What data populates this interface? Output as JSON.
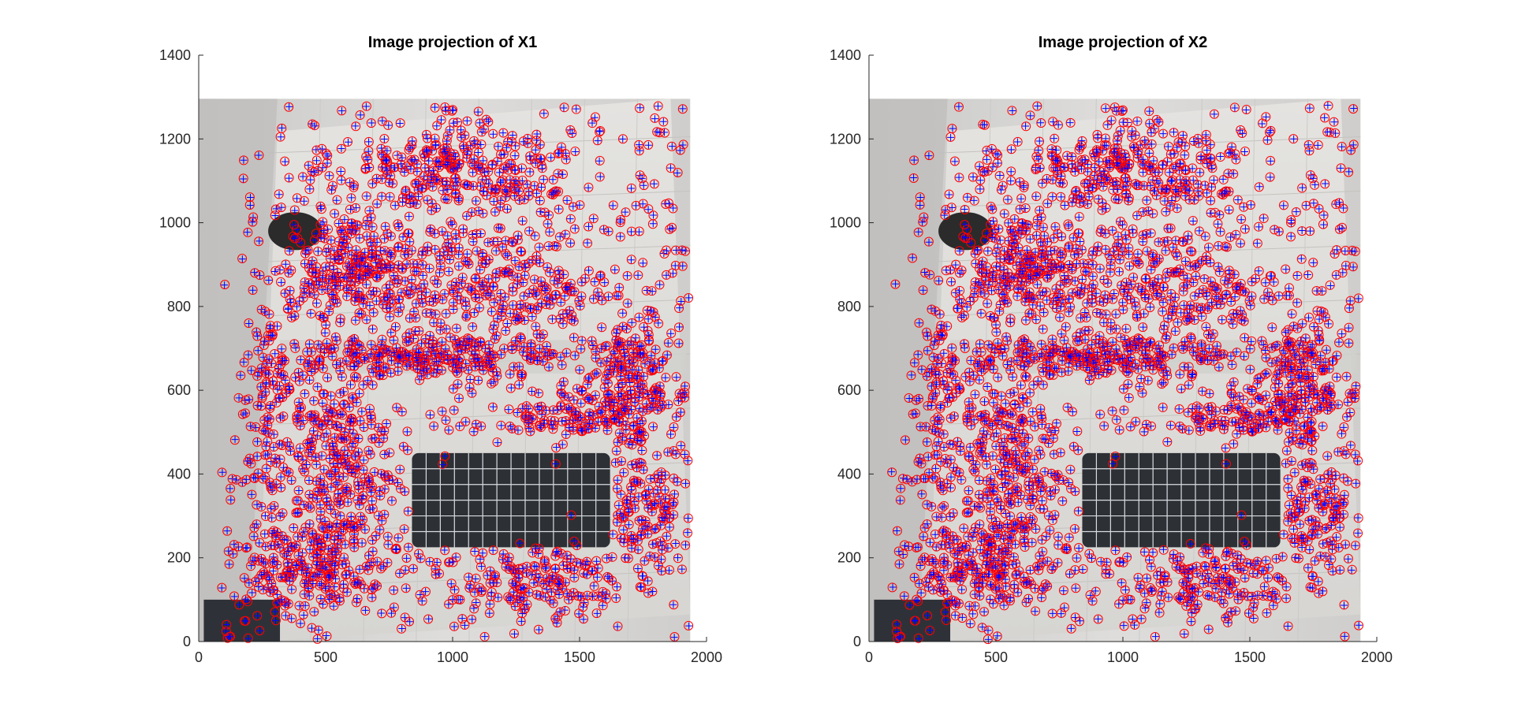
{
  "figure": {
    "background": "#ffffff"
  },
  "chart_data": [
    {
      "type": "scatter",
      "title": "Image projection of X1",
      "xlabel": "",
      "ylabel": "",
      "xlim": [
        0,
        2000
      ],
      "ylim": [
        0,
        1400
      ],
      "x_ticks": [
        "0",
        "500",
        "1000",
        "1500",
        "2000"
      ],
      "y_ticks": [
        "0",
        "200",
        "400",
        "600",
        "800",
        "1000",
        "1200",
        "1400"
      ],
      "grid": false,
      "legend": "none",
      "background_image": {
        "xlim": [
          0,
          1936
        ],
        "ylim": [
          0,
          1296
        ],
        "content": "photo of courtyard floor with metal grate"
      },
      "series": [
        {
          "marker": "circle",
          "color": "#ff0000"
        },
        {
          "marker": "plus",
          "color": "#0000ff"
        }
      ]
    },
    {
      "type": "scatter",
      "title": "Image projection of X2",
      "xlabel": "",
      "ylabel": "",
      "xlim": [
        0,
        2000
      ],
      "ylim": [
        0,
        1400
      ],
      "x_ticks": [
        "0",
        "500",
        "1000",
        "1500",
        "2000"
      ],
      "y_ticks": [
        "0",
        "200",
        "400",
        "600",
        "800",
        "1000",
        "1200",
        "1400"
      ],
      "grid": false,
      "legend": "none",
      "background_image": {
        "xlim": [
          0,
          1936
        ],
        "ylim": [
          0,
          1296
        ],
        "content": "photo of courtyard floor with metal grate"
      },
      "series": [
        {
          "marker": "circle",
          "color": "#ff0000"
        },
        {
          "marker": "plus",
          "color": "#0000ff"
        }
      ]
    }
  ]
}
